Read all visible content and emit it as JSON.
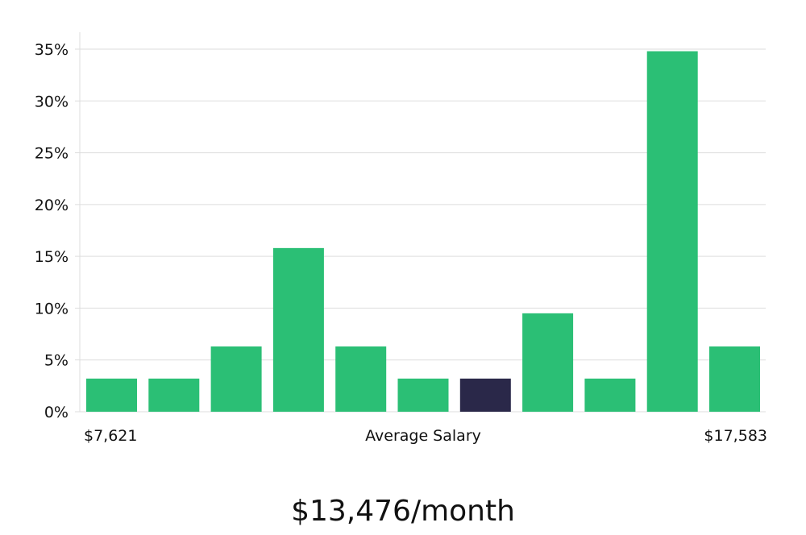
{
  "chart_data": {
    "type": "bar",
    "xlabel": "Average Salary",
    "x_range_labels": [
      "$7,621",
      "$17,583"
    ],
    "ylim": [
      0,
      36
    ],
    "yticks": [
      0,
      5,
      10,
      15,
      20,
      25,
      30,
      35
    ],
    "ytick_suffix": "%",
    "grid": true,
    "values": [
      3.2,
      3.2,
      6.3,
      15.8,
      6.3,
      3.2,
      3.2,
      9.5,
      3.2,
      34.8,
      6.3
    ],
    "highlight_index": 6,
    "colors": {
      "bar": "#2bbf75",
      "highlight": "#2a2849"
    }
  },
  "summary": {
    "value": "$13,476/month"
  }
}
